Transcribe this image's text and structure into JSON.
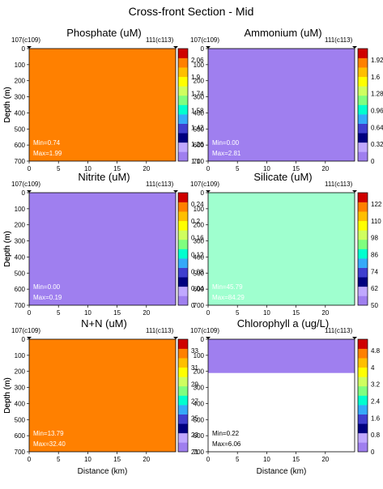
{
  "figure": {
    "title": "Cross-front Section - Mid",
    "station_left": "107(c109)",
    "station_right": "111(c113)",
    "xlabel": "Distance (km)",
    "ylabel": "Depth (m)"
  },
  "colors": {
    "scale": [
      "#9f7fef",
      "#c0a8ff",
      "#00007f",
      "#3f3fcf",
      "#35a9f9",
      "#00ffcf",
      "#7fff7f",
      "#cfff5f",
      "#ffff00",
      "#ffbf00",
      "#ff8000",
      "#cf0000"
    ]
  },
  "chart_data": [
    {
      "type": "heatmap",
      "title": "Phosphate (uM)",
      "x_ticks": [
        0,
        5,
        10,
        15,
        20
      ],
      "y_ticks": [
        0,
        100,
        200,
        300,
        400,
        500,
        600,
        700
      ],
      "xlim": [
        0,
        25
      ],
      "ylim": [
        700,
        0
      ],
      "colorbar_ticks": [
        "2.06",
        "1.9",
        "1.74",
        "1.58",
        "1.42",
        "1.26",
        "1.1"
      ],
      "stats": [
        "Min=0.74",
        "Max=1.99"
      ],
      "stat_color": "#ffffff",
      "background": "#ff8000"
    },
    {
      "type": "heatmap",
      "title": "Ammonium (uM)",
      "x_ticks": [
        0,
        5,
        10,
        15,
        20
      ],
      "y_ticks": [
        0,
        100,
        200,
        300,
        400,
        500,
        600,
        700
      ],
      "xlim": [
        0,
        25
      ],
      "ylim": [
        700,
        0
      ],
      "colorbar_ticks": [
        "1.92",
        "1.6",
        "1.28",
        "0.96",
        "0.64",
        "0.32",
        "0"
      ],
      "stats": [
        "Min=0.00",
        "Max=2.81"
      ],
      "stat_color": "#ffffff",
      "background": "#9f7fef"
    },
    {
      "type": "heatmap",
      "title": "Nitrite (uM)",
      "x_ticks": [
        0,
        5,
        10,
        15,
        20
      ],
      "y_ticks": [
        0,
        100,
        200,
        300,
        400,
        500,
        600,
        700
      ],
      "xlim": [
        0,
        25
      ],
      "ylim": [
        700,
        0
      ],
      "colorbar_ticks": [
        "0.24",
        "0.2",
        "0.16",
        "0.12",
        "0.08",
        "0.04",
        "0"
      ],
      "stats": [
        "Min=0.00",
        "Max=0.19"
      ],
      "stat_color": "#ffffff",
      "background": "#9f7fef"
    },
    {
      "type": "heatmap",
      "title": "Silicate (uM)",
      "x_ticks": [
        0,
        5,
        10,
        15,
        20
      ],
      "y_ticks": [
        0,
        100,
        200,
        300,
        400,
        500,
        600,
        700
      ],
      "xlim": [
        0,
        25
      ],
      "ylim": [
        700,
        0
      ],
      "colorbar_ticks": [
        "122",
        "110",
        "98",
        "86",
        "74",
        "62",
        "50"
      ],
      "stats": [
        "Min=45.79",
        "Max=84.29"
      ],
      "stat_color": "#ffffff",
      "background": "#9fffcf"
    },
    {
      "type": "heatmap",
      "title": "N+N (uM)",
      "x_ticks": [
        0,
        5,
        10,
        15,
        20
      ],
      "y_ticks": [
        0,
        100,
        200,
        300,
        400,
        500,
        600,
        700
      ],
      "xlim": [
        0,
        25
      ],
      "ylim": [
        700,
        0
      ],
      "colorbar_ticks": [
        "33",
        "31",
        "29",
        "27",
        "25",
        "23",
        "21"
      ],
      "stats": [
        "Min=13.79",
        "Max=32.40"
      ],
      "stat_color": "#ffffff",
      "background": "#ff8000"
    },
    {
      "type": "heatmap",
      "title": "Chlorophyll a  (ug/L)",
      "x_ticks": [
        0,
        5,
        10,
        15,
        20
      ],
      "y_ticks": [
        0,
        100,
        200,
        300,
        400,
        500,
        600,
        700
      ],
      "xlim": [
        0,
        25
      ],
      "ylim": [
        700,
        0
      ],
      "colorbar_ticks": [
        "4.8",
        "4",
        "3.2",
        "2.4",
        "1.6",
        "0.8",
        "0"
      ],
      "stats": [
        "Min=0.22",
        "Max=6.06"
      ],
      "stat_color": "#000000",
      "background": "#9f7fef"
    }
  ]
}
